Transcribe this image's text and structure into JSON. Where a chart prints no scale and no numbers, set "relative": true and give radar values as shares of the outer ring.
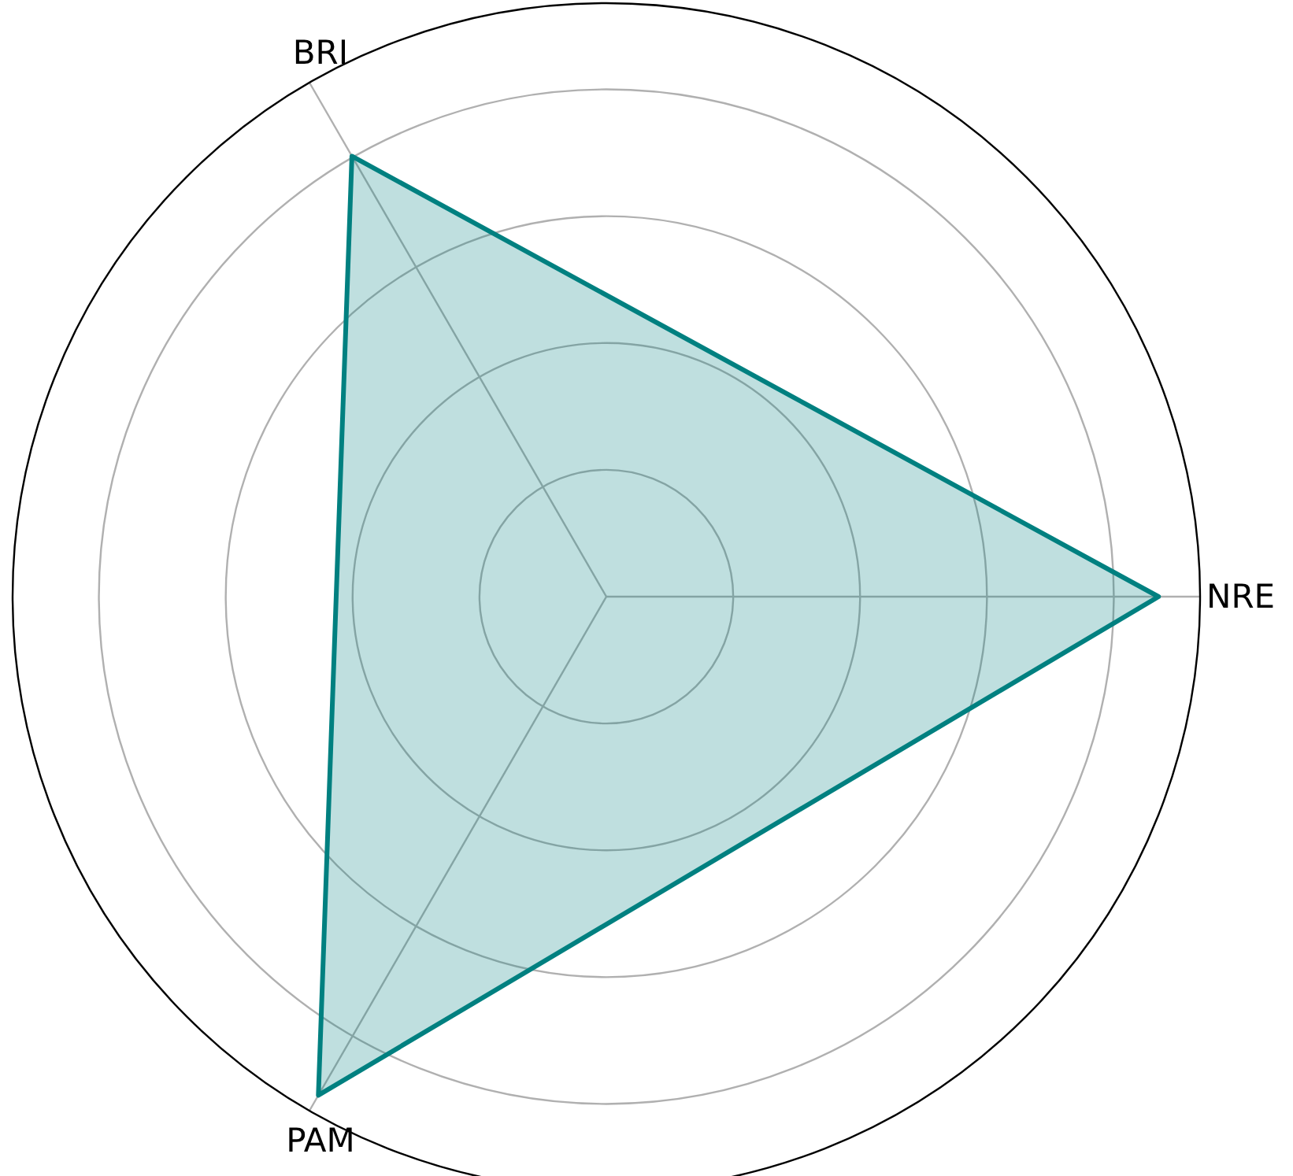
{
  "chart_data": {
    "type": "radar",
    "categories": [
      "NRE",
      "PAM",
      "BRI"
    ],
    "relative": true,
    "grid": true,
    "series": [
      {
        "color": "#008080",
        "values": [
          0.93,
          0.97,
          0.857
        ]
      }
    ]
  }
}
